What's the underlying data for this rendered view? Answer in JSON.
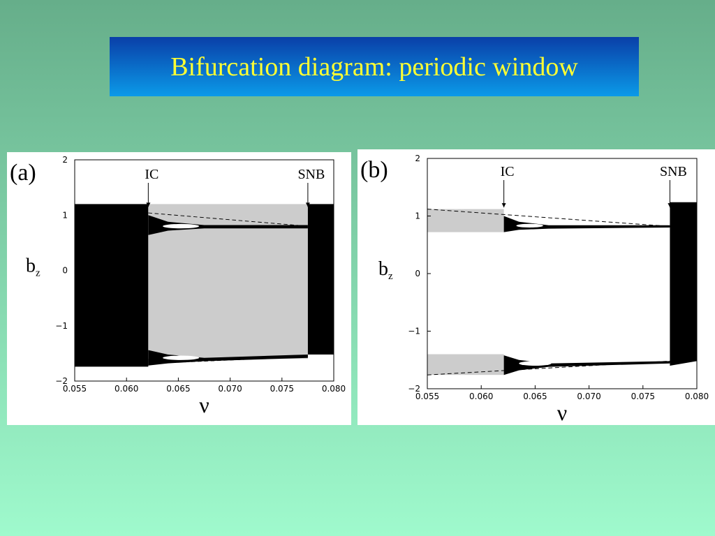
{
  "title": "Bifurcation diagram: periodic window",
  "panels": [
    {
      "label": "(a)",
      "y_label": "b",
      "y_label_sub": "z",
      "x_label": "ν",
      "annotations": [
        {
          "text": "IC",
          "x": 0.0621
        },
        {
          "text": "SNB",
          "x": 0.0775
        }
      ],
      "xlim": [
        0.055,
        0.08
      ],
      "ylim": [
        -2,
        2
      ],
      "xticks": [
        0.055,
        {
          "value": 0.06,
          "label": "0.060"
        },
        0.065,
        {
          "value": 0.07,
          "label": "0.070"
        },
        0.075,
        {
          "value": 0.08,
          "label": "0.080"
        }
      ],
      "yticks": [
        {
          "value": -2,
          "label": "−2"
        },
        {
          "value": -1,
          "label": "−1"
        },
        0,
        1,
        2
      ]
    },
    {
      "label": "(b)",
      "y_label": "b",
      "y_label_sub": "z",
      "x_label": "ν",
      "annotations": [
        {
          "text": "IC",
          "x": 0.0621
        },
        {
          "text": "SNB",
          "x": 0.0775
        }
      ],
      "xlim": [
        0.055,
        0.08
      ],
      "ylim": [
        -2,
        2
      ],
      "xticks": [
        0.055,
        {
          "value": 0.06,
          "label": "0.060"
        },
        0.065,
        {
          "value": 0.07,
          "label": "0.070"
        },
        0.075,
        {
          "value": 0.08,
          "label": "0.080"
        }
      ],
      "yticks": [
        {
          "value": -2,
          "label": "−2"
        },
        {
          "value": -1,
          "label": "−1"
        },
        0,
        1,
        2
      ]
    }
  ]
}
